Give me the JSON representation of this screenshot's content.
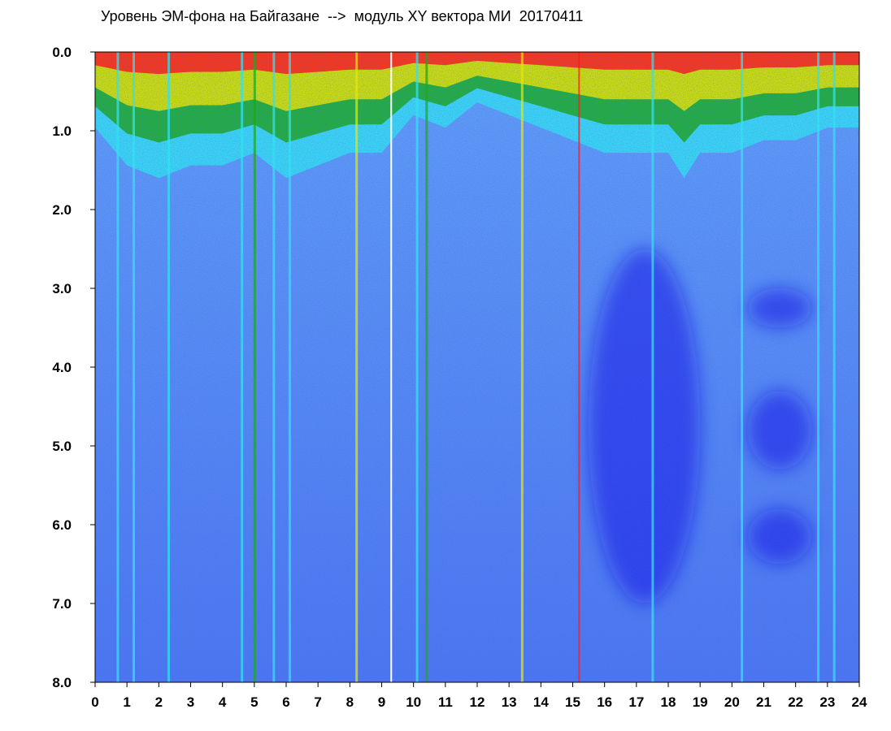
{
  "title": "Уровень ЭМ-фона на Байгазане  -->  модуль XY вектора МИ  20170411",
  "chart_data": {
    "type": "heatmap",
    "title": "Уровень ЭМ-фона на Байгазане  -->  модуль XY вектора МИ  20170411",
    "xlabel": "",
    "ylabel": "",
    "xlim": [
      0,
      24
    ],
    "ylim": [
      0,
      8
    ],
    "y_inverted": true,
    "x_ticks": [
      "0",
      "1",
      "2",
      "3",
      "4",
      "5",
      "6",
      "7",
      "8",
      "9",
      "10",
      "11",
      "12",
      "13",
      "14",
      "15",
      "16",
      "17",
      "18",
      "19",
      "20",
      "21",
      "22",
      "23",
      "24"
    ],
    "y_ticks": [
      "0.0",
      "1.0",
      "2.0",
      "3.0",
      "4.0",
      "5.0",
      "6.0",
      "7.0",
      "8.0"
    ],
    "colorscale": [
      "#1a1ae6",
      "#4a6cf0",
      "#5fa0f5",
      "#33e0f0",
      "#1fa81f",
      "#e6e600",
      "#ff1a1a"
    ],
    "top_band_depth": [
      [
        0,
        0.6
      ],
      [
        1,
        0.9
      ],
      [
        2,
        1.0
      ],
      [
        3,
        0.9
      ],
      [
        4,
        0.9
      ],
      [
        5,
        0.8
      ],
      [
        6,
        1.0
      ],
      [
        7,
        0.9
      ],
      [
        8,
        0.8
      ],
      [
        9,
        0.8
      ],
      [
        10,
        0.5
      ],
      [
        11,
        0.6
      ],
      [
        12,
        0.4
      ],
      [
        13,
        0.5
      ],
      [
        14,
        0.6
      ],
      [
        15,
        0.7
      ],
      [
        16,
        0.8
      ],
      [
        17,
        0.8
      ],
      [
        18,
        0.8
      ],
      [
        18.5,
        1.0
      ],
      [
        19,
        0.8
      ],
      [
        20,
        0.8
      ],
      [
        21,
        0.7
      ],
      [
        22,
        0.7
      ],
      [
        23,
        0.6
      ],
      [
        24,
        0.6
      ]
    ],
    "dark_regions": [
      {
        "x": [
          15.5,
          19.0
        ],
        "y": [
          2.5,
          7.0
        ]
      },
      {
        "x": [
          20.5,
          22.5
        ],
        "y": [
          3.0,
          3.5
        ]
      },
      {
        "x": [
          20.5,
          22.5
        ],
        "y": [
          4.3,
          5.3
        ]
      },
      {
        "x": [
          20.5,
          22.5
        ],
        "y": [
          5.8,
          6.5
        ]
      }
    ],
    "vertical_streaks": [
      {
        "x": 0.7,
        "color": "#33e0f0"
      },
      {
        "x": 1.2,
        "color": "#33e0f0"
      },
      {
        "x": 2.3,
        "color": "#33e0f0"
      },
      {
        "x": 4.6,
        "color": "#33e0f0"
      },
      {
        "x": 5.0,
        "color": "#1fa81f"
      },
      {
        "x": 5.6,
        "color": "#33e0f0"
      },
      {
        "x": 6.1,
        "color": "#33e0f0"
      },
      {
        "x": 8.2,
        "color": "#e6e600"
      },
      {
        "x": 9.3,
        "color": "#ffffff"
      },
      {
        "x": 10.1,
        "color": "#33e0f0"
      },
      {
        "x": 10.4,
        "color": "#1fa81f"
      },
      {
        "x": 13.4,
        "color": "#e6e600"
      },
      {
        "x": 15.2,
        "color": "#ff1a1a"
      },
      {
        "x": 17.5,
        "color": "#33e0f0"
      },
      {
        "x": 20.3,
        "color": "#33e0f0"
      },
      {
        "x": 22.7,
        "color": "#33e0f0"
      },
      {
        "x": 23.2,
        "color": "#33e0f0"
      }
    ]
  }
}
